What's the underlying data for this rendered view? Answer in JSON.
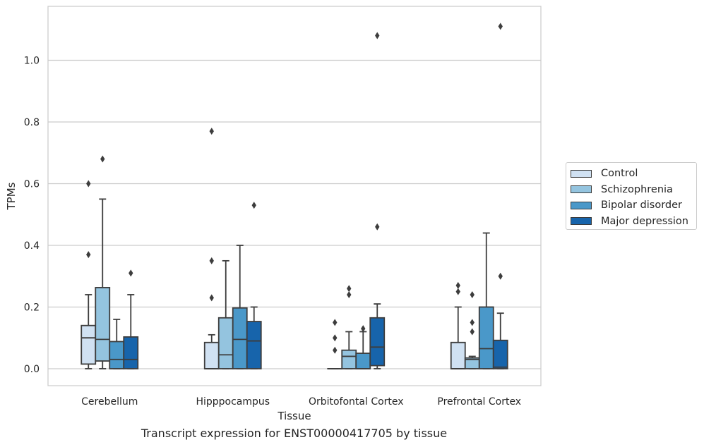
{
  "chart_data": {
    "type": "box",
    "xlabel": "Tissue",
    "ylabel": "TPMs",
    "ylim": [
      -0.055,
      1.175
    ],
    "yticks": [
      0.0,
      0.2,
      0.4,
      0.6,
      0.8,
      1.0
    ],
    "ytick_labels": [
      "0.0",
      "0.2",
      "0.4",
      "0.6",
      "0.8",
      "1.0"
    ],
    "grid": "horizontal",
    "legend_position": "right",
    "categories": [
      "Cerebellum",
      "Hipppocampus",
      "Orbitofontal Cortex",
      "Prefrontal Cortex"
    ],
    "series": [
      {
        "name": "Control",
        "color": "#d0e1f2",
        "boxes": [
          {
            "q1": 0.015,
            "median": 0.1,
            "q3": 0.14,
            "whislo": 0.0,
            "whishi": 0.24,
            "fliers": [
              0.37,
              0.6
            ]
          },
          {
            "q1": 0.0,
            "median": 0.0,
            "q3": 0.085,
            "whislo": 0.0,
            "whishi": 0.11,
            "fliers": [
              0.23,
              0.35,
              0.77
            ]
          },
          {
            "q1": 0.0,
            "median": 0.0,
            "q3": 0.0,
            "whislo": 0.0,
            "whishi": 0.0,
            "fliers": [
              0.06,
              0.1,
              0.15
            ]
          },
          {
            "q1": 0.0,
            "median": 0.0,
            "q3": 0.085,
            "whislo": 0.0,
            "whishi": 0.2,
            "fliers": [
              0.25,
              0.27
            ]
          }
        ]
      },
      {
        "name": "Schizophrenia",
        "color": "#94c4df",
        "boxes": [
          {
            "q1": 0.025,
            "median": 0.095,
            "q3": 0.263,
            "whislo": 0.0,
            "whishi": 0.55,
            "fliers": [
              0.68
            ]
          },
          {
            "q1": 0.0,
            "median": 0.045,
            "q3": 0.165,
            "whislo": 0.0,
            "whishi": 0.35,
            "fliers": []
          },
          {
            "q1": 0.0,
            "median": 0.04,
            "q3": 0.06,
            "whislo": 0.0,
            "whishi": 0.12,
            "fliers": [
              0.24,
              0.26
            ]
          },
          {
            "q1": 0.0,
            "median": 0.03,
            "q3": 0.035,
            "whislo": 0.0,
            "whishi": 0.04,
            "fliers": [
              0.12,
              0.15,
              0.24
            ]
          }
        ]
      },
      {
        "name": "Bipolar disorder",
        "color": "#4a98c9",
        "boxes": [
          {
            "q1": 0.0,
            "median": 0.03,
            "q3": 0.088,
            "whislo": 0.0,
            "whishi": 0.16,
            "fliers": []
          },
          {
            "q1": 0.0,
            "median": 0.095,
            "q3": 0.197,
            "whislo": 0.0,
            "whishi": 0.4,
            "fliers": []
          },
          {
            "q1": 0.0,
            "median": 0.0,
            "q3": 0.05,
            "whislo": 0.0,
            "whishi": 0.12,
            "fliers": [
              0.13
            ]
          },
          {
            "q1": 0.0,
            "median": 0.065,
            "q3": 0.2,
            "whislo": 0.0,
            "whishi": 0.44,
            "fliers": []
          }
        ]
      },
      {
        "name": "Major depression",
        "color": "#1764ab",
        "boxes": [
          {
            "q1": 0.0,
            "median": 0.03,
            "q3": 0.103,
            "whislo": 0.0,
            "whishi": 0.24,
            "fliers": [
              0.31
            ]
          },
          {
            "q1": 0.0,
            "median": 0.09,
            "q3": 0.153,
            "whislo": 0.0,
            "whishi": 0.2,
            "fliers": [
              0.53
            ]
          },
          {
            "q1": 0.01,
            "median": 0.07,
            "q3": 0.165,
            "whislo": 0.0,
            "whishi": 0.21,
            "fliers": [
              0.46,
              1.08
            ]
          },
          {
            "q1": 0.0,
            "median": 0.005,
            "q3": 0.092,
            "whislo": 0.0,
            "whishi": 0.18,
            "fliers": [
              0.3,
              1.11
            ]
          }
        ]
      }
    ]
  },
  "caption": "Transcript expression for ENST00000417705 by tissue"
}
